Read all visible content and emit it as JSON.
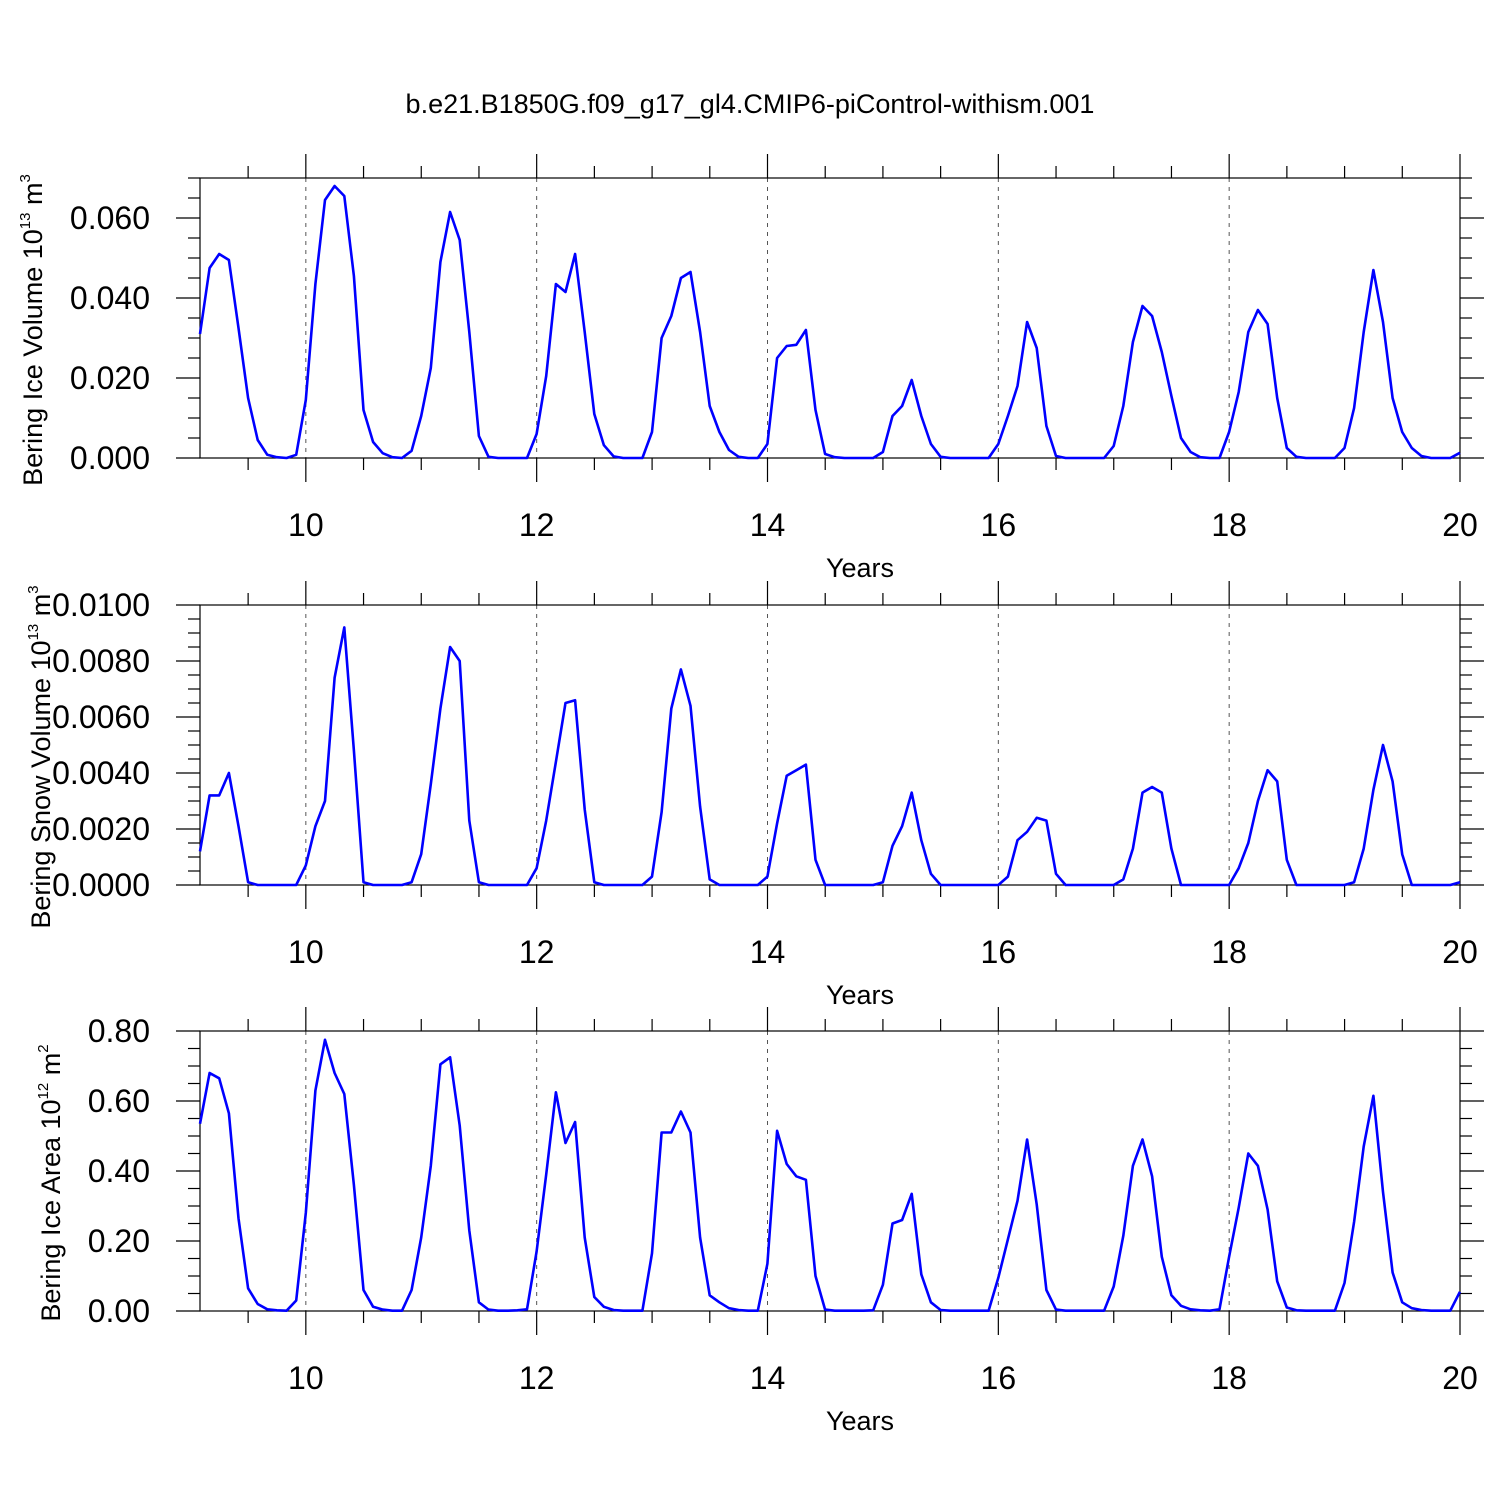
{
  "title": "b.e21.B1850G.f09_g17_gl4.CMIP6-piControl-withism.001",
  "colors": {
    "series": "#0000ff",
    "axis": "#000000",
    "grid": "#555555"
  },
  "chart_data": [
    {
      "type": "line",
      "ylabel": "Bering Ice Volume 10",
      "ylabel_exp": "13",
      "ylabel_unit": "m",
      "ylabel_unit_exp": "3",
      "xlabel": "Years",
      "xlim": [
        9.083,
        20.0
      ],
      "ylim": [
        0.0,
        0.07
      ],
      "x_ticks": [
        "10",
        "12",
        "14",
        "16",
        "18",
        "20"
      ],
      "y_ticks": [
        "0.000",
        "0.020",
        "0.040",
        "0.060"
      ],
      "x_start": 9.083,
      "x_step": 0.08333,
      "values": [
        0.031,
        0.0475,
        0.051,
        0.0495,
        0.0325,
        0.015,
        0.0045,
        0.0008,
        0.0002,
        0.0,
        0.0008,
        0.0145,
        0.0435,
        0.0645,
        0.068,
        0.0655,
        0.0455,
        0.012,
        0.004,
        0.0012,
        0.0002,
        0.0,
        0.0018,
        0.0105,
        0.0225,
        0.049,
        0.0615,
        0.0545,
        0.0315,
        0.0055,
        0.0003,
        0.0,
        0.0,
        0.0,
        0.0,
        0.006,
        0.0205,
        0.0435,
        0.0415,
        0.051,
        0.0315,
        0.011,
        0.0032,
        0.0004,
        0.0,
        0.0,
        0.0,
        0.0065,
        0.03,
        0.0355,
        0.045,
        0.0465,
        0.0315,
        0.013,
        0.0065,
        0.002,
        0.0003,
        0.0,
        0.0,
        0.0035,
        0.025,
        0.028,
        0.0283,
        0.032,
        0.012,
        0.001,
        0.0002,
        0.0,
        0.0,
        0.0,
        0.0,
        0.0015,
        0.0105,
        0.013,
        0.0195,
        0.0105,
        0.0035,
        0.0003,
        0.0,
        0.0,
        0.0,
        0.0,
        0.0,
        0.0035,
        0.0105,
        0.018,
        0.034,
        0.0275,
        0.008,
        0.0005,
        0.0,
        0.0,
        0.0,
        0.0,
        0.0,
        0.003,
        0.013,
        0.029,
        0.038,
        0.0355,
        0.0265,
        0.0155,
        0.005,
        0.0015,
        0.0002,
        0.0,
        0.0,
        0.0065,
        0.0165,
        0.0315,
        0.037,
        0.0335,
        0.015,
        0.0025,
        0.0003,
        0.0,
        0.0,
        0.0,
        0.0,
        0.0025,
        0.0125,
        0.0315,
        0.047,
        0.034,
        0.015,
        0.0065,
        0.0025,
        0.0005,
        0.0,
        0.0,
        0.0,
        0.0013
      ]
    },
    {
      "type": "line",
      "ylabel": "Bering Snow Volume 10",
      "ylabel_exp": "13",
      "ylabel_unit": "m",
      "ylabel_unit_exp": "3",
      "xlabel": "Years",
      "xlim": [
        9.083,
        20.0
      ],
      "ylim": [
        0.0,
        0.01
      ],
      "x_ticks": [
        "10",
        "12",
        "14",
        "16",
        "18",
        "20"
      ],
      "y_ticks": [
        "0.0000",
        "0.0020",
        "0.0040",
        "0.0060",
        "0.0080",
        "0.0100"
      ],
      "x_start": 9.083,
      "x_step": 0.08333,
      "values": [
        0.0012,
        0.0032,
        0.0032,
        0.004,
        0.0021,
        0.0001,
        0.0,
        0.0,
        0.0,
        0.0,
        0.0,
        0.0007,
        0.0021,
        0.003,
        0.0074,
        0.0092,
        0.0048,
        0.0001,
        0.0,
        0.0,
        0.0,
        0.0,
        0.0001,
        0.0011,
        0.0036,
        0.0063,
        0.0085,
        0.008,
        0.0023,
        0.0001,
        0.0,
        0.0,
        0.0,
        0.0,
        0.0,
        0.0006,
        0.0023,
        0.0044,
        0.0065,
        0.0066,
        0.0027,
        0.0001,
        0.0,
        0.0,
        0.0,
        0.0,
        0.0,
        0.0003,
        0.0026,
        0.0063,
        0.0077,
        0.0064,
        0.0028,
        0.0002,
        0.0,
        0.0,
        0.0,
        0.0,
        0.0,
        0.0003,
        0.0022,
        0.0039,
        0.0041,
        0.0043,
        0.0009,
        0.0,
        0.0,
        0.0,
        0.0,
        0.0,
        0.0,
        0.0001,
        0.0014,
        0.0021,
        0.0033,
        0.0016,
        0.0004,
        0.0,
        0.0,
        0.0,
        0.0,
        0.0,
        0.0,
        0.0,
        0.0003,
        0.0016,
        0.0019,
        0.0024,
        0.0023,
        0.0004,
        0.0,
        0.0,
        0.0,
        0.0,
        0.0,
        0.0,
        0.0002,
        0.0013,
        0.0033,
        0.0035,
        0.0033,
        0.0013,
        0.0,
        0.0,
        0.0,
        0.0,
        0.0,
        0.0,
        0.0006,
        0.0015,
        0.003,
        0.0041,
        0.0037,
        0.0009,
        0.0,
        0.0,
        0.0,
        0.0,
        0.0,
        0.0,
        0.0001,
        0.0013,
        0.0034,
        0.005,
        0.0037,
        0.0011,
        0.0,
        0.0,
        0.0,
        0.0,
        0.0,
        0.0001
      ]
    },
    {
      "type": "line",
      "ylabel": "Bering Ice Area 10",
      "ylabel_exp": "12",
      "ylabel_unit": "m",
      "ylabel_unit_exp": "2",
      "xlabel": "Years",
      "xlim": [
        9.083,
        20.0
      ],
      "ylim": [
        0.0,
        0.8
      ],
      "x_ticks": [
        "10",
        "12",
        "14",
        "16",
        "18",
        "20"
      ],
      "y_ticks": [
        "0.00",
        "0.20",
        "0.40",
        "0.60",
        "0.80"
      ],
      "x_start": 9.083,
      "x_step": 0.08333,
      "values": [
        0.535,
        0.68,
        0.665,
        0.565,
        0.265,
        0.065,
        0.02,
        0.005,
        0.002,
        0.001,
        0.03,
        0.28,
        0.63,
        0.775,
        0.68,
        0.62,
        0.36,
        0.06,
        0.012,
        0.004,
        0.001,
        0.001,
        0.06,
        0.21,
        0.415,
        0.705,
        0.725,
        0.53,
        0.23,
        0.025,
        0.004,
        0.001,
        0.001,
        0.002,
        0.005,
        0.17,
        0.39,
        0.625,
        0.48,
        0.54,
        0.21,
        0.04,
        0.012,
        0.003,
        0.001,
        0.001,
        0.001,
        0.165,
        0.51,
        0.51,
        0.57,
        0.51,
        0.21,
        0.045,
        0.025,
        0.008,
        0.003,
        0.001,
        0.001,
        0.135,
        0.515,
        0.42,
        0.385,
        0.375,
        0.1,
        0.004,
        0.001,
        0.001,
        0.001,
        0.001,
        0.002,
        0.075,
        0.25,
        0.26,
        0.335,
        0.105,
        0.025,
        0.003,
        0.001,
        0.001,
        0.001,
        0.001,
        0.001,
        0.095,
        0.205,
        0.315,
        0.49,
        0.305,
        0.06,
        0.004,
        0.001,
        0.001,
        0.001,
        0.001,
        0.001,
        0.07,
        0.215,
        0.415,
        0.49,
        0.385,
        0.155,
        0.045,
        0.015,
        0.005,
        0.002,
        0.001,
        0.005,
        0.155,
        0.295,
        0.45,
        0.415,
        0.29,
        0.085,
        0.01,
        0.002,
        0.001,
        0.001,
        0.001,
        0.001,
        0.08,
        0.255,
        0.47,
        0.615,
        0.34,
        0.11,
        0.025,
        0.008,
        0.003,
        0.001,
        0.001,
        0.001,
        0.055
      ]
    }
  ]
}
